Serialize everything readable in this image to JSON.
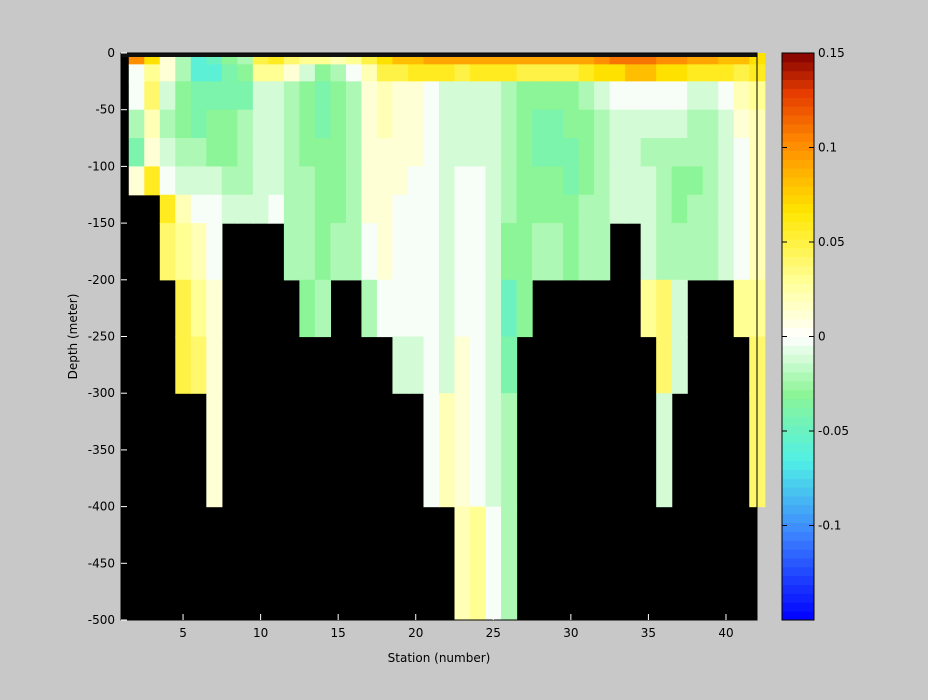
{
  "chart_data": {
    "type": "heatmap",
    "title": "",
    "xlabel": "Station (number)",
    "ylabel": "Depth (meter)",
    "xlim": [
      1,
      42
    ],
    "ylim": [
      -500,
      0
    ],
    "x_ticks": [
      5,
      10,
      15,
      20,
      25,
      30,
      35,
      40
    ],
    "y_ticks": [
      0,
      -50,
      -100,
      -150,
      -200,
      -250,
      -300,
      -350,
      -400,
      -450,
      -500
    ],
    "colorbar": {
      "range": [
        -0.15,
        0.15
      ],
      "ticks": [
        0.15,
        0.1,
        0.05,
        0,
        -0.05,
        -0.1
      ],
      "tick_labels": [
        "0.15",
        "0.1",
        "0.05",
        "0",
        "-0.05",
        "-0.1"
      ]
    },
    "stations": [
      2,
      3,
      4,
      5,
      6,
      7,
      8,
      9,
      10,
      11,
      12,
      13,
      14,
      15,
      16,
      17,
      18,
      19,
      20,
      21,
      22,
      23,
      24,
      25,
      26,
      27,
      28,
      29,
      30,
      31,
      32,
      33,
      34,
      35,
      36,
      37,
      38,
      39,
      40,
      41,
      42
    ],
    "bottom_depth": [
      -125,
      -125,
      -200,
      -300,
      -300,
      -400,
      -150,
      -150,
      -150,
      -150,
      -200,
      -250,
      -250,
      -200,
      -200,
      -250,
      -250,
      -300,
      -300,
      -400,
      -400,
      -500,
      -500,
      -500,
      -500,
      -250,
      -200,
      -200,
      -200,
      -200,
      -200,
      -150,
      -150,
      -250,
      -400,
      -300,
      -200,
      -200,
      -200,
      -250,
      -400
    ],
    "depth_levels": [
      0,
      -10,
      -25,
      -50,
      -75,
      -100,
      -125,
      -150,
      -200,
      -250,
      -300,
      -400,
      -500
    ],
    "values": [
      [
        0.1,
        0.07,
        0.01,
        -0.02,
        -0.06,
        -0.05,
        -0.03,
        -0.02,
        0.05,
        0.06,
        0.04,
        0.03,
        0.03,
        0.02,
        0.03,
        0.05,
        0.07,
        0.08,
        0.08,
        0.09,
        0.09,
        0.09,
        0.09,
        0.09,
        0.09,
        0.09,
        0.09,
        0.09,
        0.09,
        0.09,
        0.1,
        0.11,
        0.11,
        0.11,
        0.1,
        0.1,
        0.09,
        0.09,
        0.08,
        0.08,
        0.07
      ],
      [
        0.0,
        0.03,
        0.01,
        -0.02,
        -0.06,
        -0.06,
        -0.04,
        -0.03,
        0.03,
        0.03,
        0.01,
        -0.01,
        -0.03,
        -0.02,
        0.0,
        0.02,
        0.05,
        0.05,
        0.06,
        0.06,
        0.06,
        0.05,
        0.06,
        0.06,
        0.06,
        0.05,
        0.05,
        0.05,
        0.05,
        0.06,
        0.07,
        0.07,
        0.08,
        0.08,
        0.07,
        0.07,
        0.06,
        0.06,
        0.06,
        0.05,
        0.06
      ],
      [
        0.0,
        0.04,
        -0.01,
        -0.03,
        -0.04,
        -0.04,
        -0.04,
        -0.04,
        -0.01,
        -0.01,
        -0.02,
        -0.03,
        -0.04,
        -0.03,
        -0.02,
        0.01,
        0.02,
        0.01,
        0.01,
        0.0,
        -0.01,
        -0.01,
        -0.01,
        -0.01,
        -0.02,
        -0.03,
        -0.03,
        -0.03,
        -0.03,
        -0.02,
        -0.01,
        0.0,
        0.0,
        0.0,
        0.0,
        0.0,
        -0.01,
        -0.01,
        0.0,
        0.02,
        0.03
      ],
      [
        -0.02,
        0.02,
        -0.02,
        -0.03,
        -0.04,
        -0.03,
        -0.03,
        -0.02,
        -0.01,
        -0.01,
        -0.02,
        -0.03,
        -0.04,
        -0.03,
        -0.02,
        0.01,
        0.02,
        0.01,
        0.01,
        0.0,
        -0.01,
        -0.01,
        -0.01,
        -0.01,
        -0.02,
        -0.03,
        -0.04,
        -0.04,
        -0.03,
        -0.03,
        -0.02,
        -0.01,
        -0.01,
        -0.01,
        -0.01,
        -0.01,
        -0.02,
        -0.02,
        -0.01,
        0.01,
        0.02
      ],
      [
        -0.04,
        0.01,
        -0.01,
        -0.02,
        -0.02,
        -0.03,
        -0.03,
        -0.02,
        -0.01,
        -0.01,
        -0.02,
        -0.03,
        -0.03,
        -0.03,
        -0.02,
        0.01,
        0.01,
        0.01,
        0.01,
        0.0,
        -0.01,
        -0.01,
        -0.01,
        -0.01,
        -0.02,
        -0.03,
        -0.04,
        -0.04,
        -0.04,
        -0.03,
        -0.02,
        -0.01,
        -0.01,
        -0.02,
        -0.02,
        -0.02,
        -0.02,
        -0.02,
        -0.01,
        0.0,
        0.02
      ],
      [
        0.01,
        0.06,
        0.0,
        -0.01,
        -0.01,
        -0.01,
        -0.02,
        -0.02,
        -0.01,
        -0.01,
        -0.02,
        -0.02,
        -0.03,
        -0.03,
        -0.02,
        0.01,
        0.01,
        0.01,
        0.0,
        0.0,
        -0.01,
        0.0,
        0.0,
        -0.01,
        -0.02,
        -0.03,
        -0.03,
        -0.03,
        -0.04,
        -0.03,
        -0.02,
        -0.01,
        -0.01,
        -0.01,
        -0.02,
        -0.03,
        -0.03,
        -0.02,
        -0.01,
        0.0,
        0.02
      ],
      [
        0.0,
        0.0,
        0.06,
        0.02,
        0.0,
        0.0,
        -0.01,
        -0.01,
        -0.01,
        0.0,
        -0.02,
        -0.02,
        -0.03,
        -0.03,
        -0.02,
        0.01,
        0.01,
        0.0,
        0.0,
        0.0,
        -0.01,
        0.0,
        0.0,
        -0.01,
        -0.02,
        -0.03,
        -0.03,
        -0.03,
        -0.03,
        -0.02,
        -0.02,
        -0.01,
        -0.01,
        -0.01,
        -0.02,
        -0.03,
        -0.02,
        -0.02,
        -0.01,
        0.0,
        0.02
      ],
      [
        0.0,
        0.0,
        0.04,
        0.03,
        0.02,
        0.0,
        -0.01,
        -0.01,
        -0.01,
        0.0,
        -0.02,
        -0.02,
        -0.03,
        -0.02,
        -0.02,
        0.0,
        0.01,
        0.0,
        0.0,
        0.0,
        -0.01,
        0.0,
        0.0,
        -0.01,
        -0.03,
        -0.03,
        -0.02,
        -0.02,
        -0.03,
        -0.02,
        -0.02,
        -0.01,
        -0.01,
        -0.01,
        -0.02,
        -0.02,
        -0.02,
        -0.02,
        -0.01,
        0.0,
        0.02
      ],
      [
        0.0,
        0.0,
        0.04,
        0.05,
        0.03,
        0.01,
        0.02,
        -0.01,
        -0.01,
        0.0,
        -0.02,
        -0.03,
        -0.02,
        -0.02,
        -0.02,
        -0.02,
        0.0,
        0.0,
        0.0,
        0.0,
        -0.01,
        0.0,
        0.0,
        -0.01,
        -0.05,
        -0.03,
        -0.02,
        -0.02,
        -0.03,
        -0.02,
        -0.02,
        -0.02,
        0.02,
        0.03,
        0.04,
        -0.01,
        -0.01,
        -0.01,
        -0.01,
        0.03,
        0.03
      ],
      [
        0.0,
        0.0,
        0.04,
        0.05,
        0.04,
        0.01,
        0.02,
        0.0,
        0.0,
        0.0,
        -0.02,
        -0.02,
        -0.02,
        -0.02,
        -0.02,
        -0.02,
        0.0,
        -0.01,
        -0.01,
        0.0,
        -0.01,
        0.01,
        0.0,
        -0.01,
        -0.04,
        -0.03,
        -0.02,
        -0.02,
        -0.02,
        -0.02,
        -0.02,
        -0.02,
        0.02,
        0.03,
        0.04,
        -0.01,
        -0.01,
        -0.01,
        -0.01,
        0.03,
        0.04
      ],
      [
        0.0,
        0.0,
        0.04,
        0.05,
        0.03,
        0.01,
        0.02,
        0.0,
        0.0,
        0.0,
        -0.02,
        -0.02,
        -0.02,
        -0.02,
        -0.02,
        -0.02,
        0.0,
        -0.01,
        -0.01,
        0.0,
        0.02,
        0.01,
        0.0,
        -0.01,
        -0.02,
        -0.03,
        -0.02,
        -0.02,
        -0.02,
        -0.02,
        -0.02,
        -0.02,
        0.02,
        0.03,
        -0.01,
        -0.01,
        -0.01,
        -0.01,
        -0.01,
        0.03,
        0.04
      ],
      [
        0.0,
        0.0,
        0.04,
        0.05,
        0.03,
        0.01,
        0.0,
        0.0,
        0.0,
        0.0,
        -0.02,
        -0.02,
        -0.02,
        -0.02,
        -0.02,
        -0.02,
        0.0,
        -0.01,
        -0.01,
        0.0,
        0.01,
        0.02,
        0.03,
        0.0,
        -0.02,
        -0.03,
        -0.02,
        -0.02,
        -0.02,
        -0.02,
        -0.02,
        -0.02,
        0.02,
        0.03,
        0.04,
        -0.01,
        -0.01,
        -0.01,
        -0.01,
        0.03,
        0.04
      ]
    ]
  }
}
